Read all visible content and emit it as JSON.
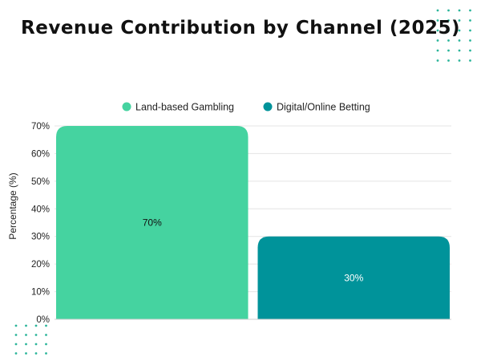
{
  "chart_data": {
    "type": "bar",
    "title": "Revenue Contribution by Channel (2025)",
    "ylabel": "Percentage (%)",
    "xlabel": "",
    "ylim": [
      0,
      70
    ],
    "yticks": [
      "0%",
      "10%",
      "20%",
      "30%",
      "40%",
      "50%",
      "60%",
      "70%"
    ],
    "grid": true,
    "legend_position": "top",
    "series": [
      {
        "name": "Land-based Gambling",
        "value": 70,
        "label": "70%",
        "color": "#45d3a0"
      },
      {
        "name": "Digital/Online Betting",
        "value": 30,
        "label": "30%",
        "color": "#00939a"
      }
    ]
  }
}
